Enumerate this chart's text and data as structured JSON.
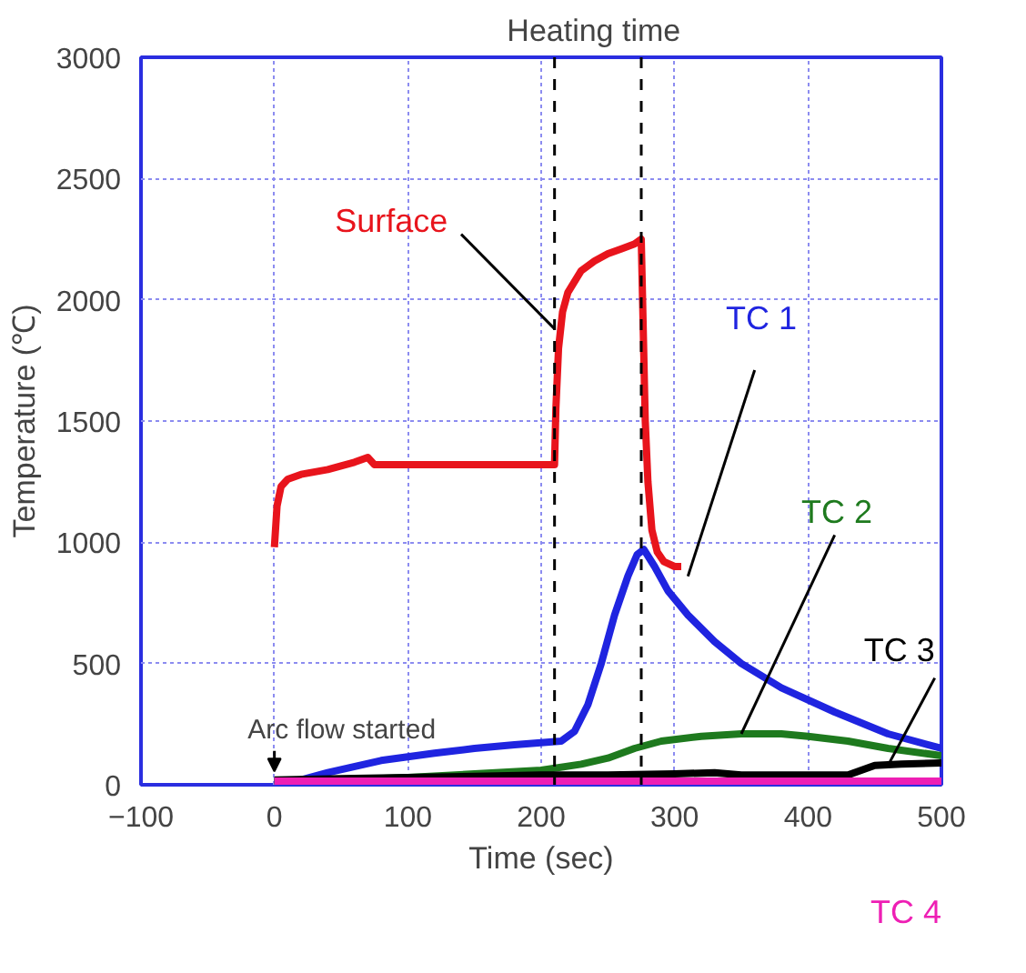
{
  "chart_data": {
    "type": "line",
    "xlabel": "Time (sec)",
    "ylabel": "Temperature (℃)",
    "xlim": [
      -100,
      500
    ],
    "ylim": [
      0,
      3000
    ],
    "xticks": [
      -100,
      0,
      100,
      200,
      300,
      400,
      500
    ],
    "yticks": [
      0,
      500,
      1000,
      1500,
      2000,
      2500,
      3000
    ],
    "grid": true,
    "legend": false,
    "marker": "none",
    "line_style": "solid",
    "series": [
      {
        "name": "Surface",
        "color": "#e8141c",
        "x": [
          0,
          2,
          5,
          10,
          20,
          40,
          60,
          70,
          75,
          80,
          100,
          150,
          200,
          210,
          211,
          213,
          216,
          220,
          230,
          240,
          250,
          260,
          270,
          275,
          276,
          278,
          280,
          283,
          287,
          292,
          300,
          305
        ],
        "values": [
          980,
          1150,
          1230,
          1260,
          1280,
          1300,
          1330,
          1350,
          1320,
          1320,
          1320,
          1320,
          1320,
          1320,
          1550,
          1800,
          1950,
          2030,
          2120,
          2160,
          2190,
          2210,
          2230,
          2250,
          2000,
          1500,
          1250,
          1050,
          960,
          920,
          900,
          900
        ]
      },
      {
        "name": "TC 1",
        "color": "#1f24e0",
        "x": [
          0,
          20,
          40,
          80,
          120,
          150,
          180,
          215,
          225,
          235,
          245,
          255,
          265,
          272,
          277,
          285,
          295,
          310,
          330,
          350,
          380,
          420,
          460,
          500
        ],
        "values": [
          15,
          20,
          50,
          100,
          130,
          150,
          165,
          180,
          220,
          330,
          500,
          700,
          860,
          950,
          970,
          900,
          800,
          700,
          590,
          500,
          400,
          300,
          210,
          150
        ]
      },
      {
        "name": "TC 2",
        "color": "#1e7a1e",
        "x": [
          0,
          50,
          100,
          150,
          200,
          230,
          250,
          270,
          290,
          320,
          350,
          380,
          400,
          430,
          460,
          500
        ],
        "values": [
          10,
          20,
          30,
          45,
          60,
          85,
          110,
          150,
          180,
          200,
          210,
          210,
          200,
          180,
          150,
          120
        ]
      },
      {
        "name": "TC 3",
        "color": "#000000",
        "x": [
          0,
          50,
          100,
          150,
          200,
          250,
          300,
          330,
          350,
          380,
          400,
          430,
          440,
          450,
          470,
          500
        ],
        "values": [
          20,
          25,
          30,
          35,
          40,
          40,
          45,
          50,
          40,
          40,
          40,
          40,
          60,
          80,
          85,
          90
        ]
      },
      {
        "name": "TC 4",
        "color": "#ee1fb4",
        "x": [
          0,
          100,
          200,
          300,
          400,
          500
        ],
        "values": [
          15,
          15,
          15,
          15,
          15,
          15
        ]
      }
    ],
    "ref_lines": [
      {
        "axis": "x",
        "value": 210,
        "color": "#000000",
        "line_style": "dashed"
      },
      {
        "axis": "x",
        "value": 275,
        "color": "#000000",
        "line_style": "dashed"
      }
    ],
    "annotations": [
      "Heating time",
      "Arc flow started"
    ]
  }
}
